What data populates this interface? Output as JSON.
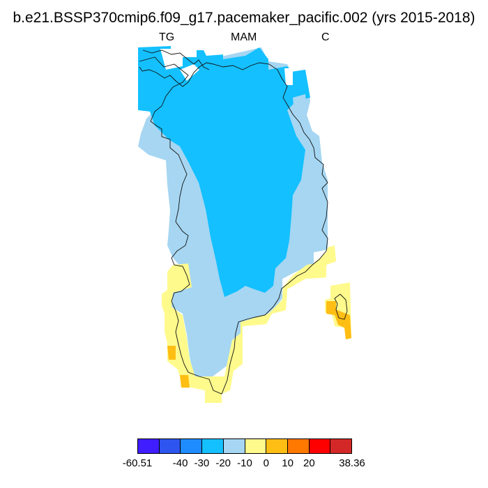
{
  "title": "b.e21.BSSP370cmip6.f09_g17.pacemaker_pacific.002 (yrs 2015-2018)",
  "subtitle_left": "TG",
  "subtitle_center": "MAM",
  "subtitle_right": "C",
  "colors": {
    "light_blue": "#a6d6f2",
    "cyan_blue": "#14c0ff",
    "pale_yellow": "#fffa8c",
    "orange_yellow": "#ffbe14"
  },
  "colorbar": {
    "colors": [
      "#3f1dff",
      "#2e55ef",
      "#1e8cff",
      "#14c0ff",
      "#a6d6f2",
      "#fffa8c",
      "#ffbe14",
      "#ff7800",
      "#ff0000",
      "#d42828"
    ],
    "ticks": [
      "-60.51",
      "-40",
      "-30",
      "-20",
      "-10",
      "0",
      "10",
      "20",
      "38.36"
    ]
  }
}
